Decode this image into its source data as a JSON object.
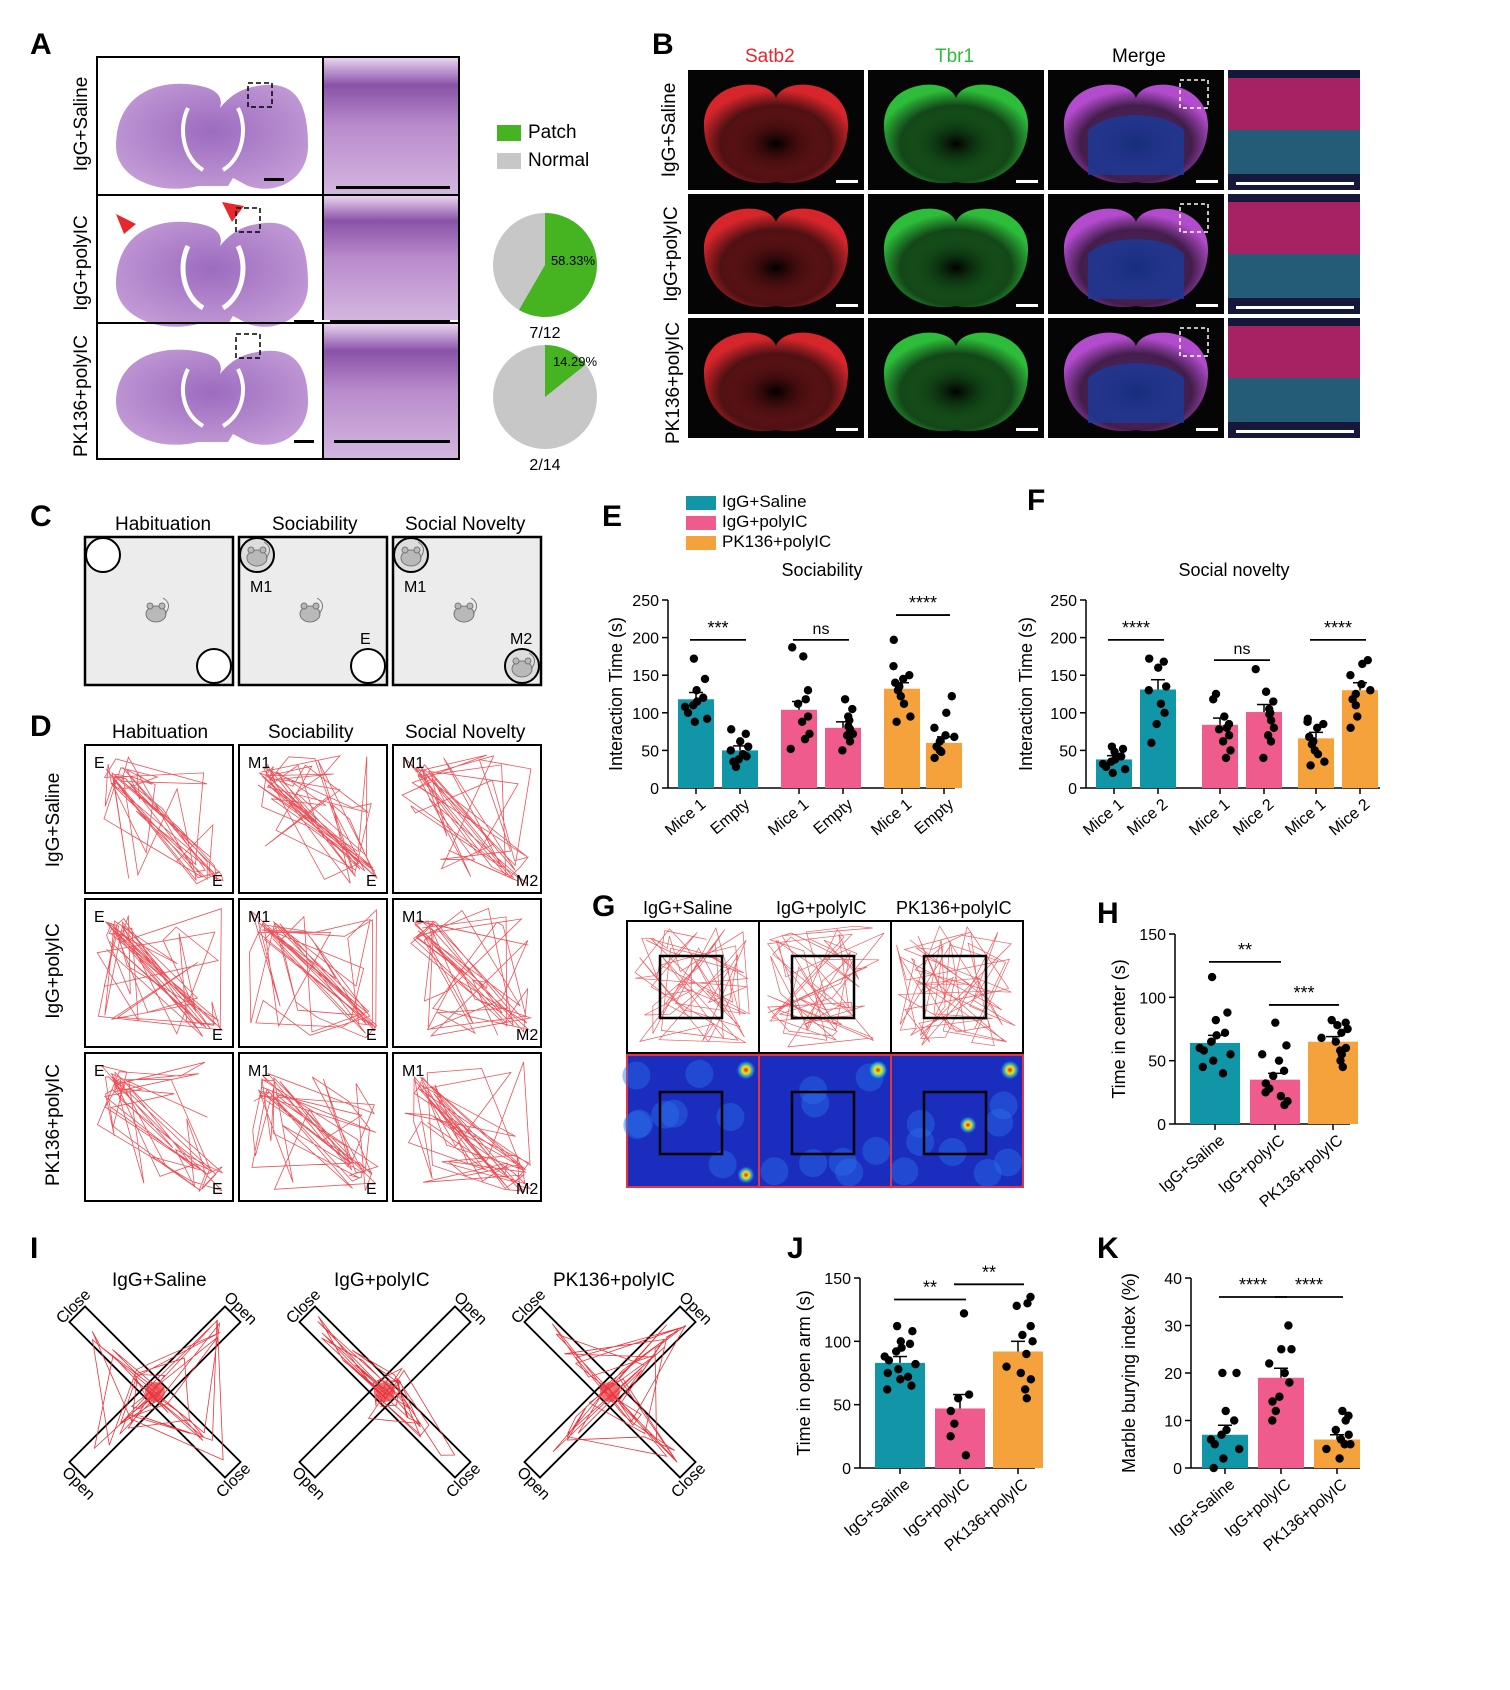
{
  "panels": {
    "A": "A",
    "B": "B",
    "C": "C",
    "D": "D",
    "E": "E",
    "F": "F",
    "G": "G",
    "H": "H",
    "I": "I",
    "J": "J",
    "K": "K"
  },
  "groups": [
    "IgG+Saline",
    "IgG+polyIC",
    "PK136+polyIC"
  ],
  "colors": {
    "saline": "#1196a8",
    "polyic": "#ee5b8c",
    "pk136": "#f6a23c",
    "patch": "#46b321",
    "normal": "#c7c7c7",
    "track": "#e8333b"
  },
  "panelA": {
    "legend": [
      "Patch",
      "Normal"
    ],
    "pies": [
      {
        "group": "IgG+polyIC",
        "patch_fraction": 0.5833,
        "pct_label": "58.33%",
        "ratio": "7/12"
      },
      {
        "group": "PK136+polyIC",
        "patch_fraction": 0.1429,
        "pct_label": "14.29%",
        "ratio": "2/14"
      }
    ]
  },
  "panelB": {
    "columns": [
      "Satb2",
      "Tbr1",
      "Merge"
    ]
  },
  "panelC": {
    "columns": [
      "Habituation",
      "Sociability",
      "Social Novelty"
    ],
    "labels": {
      "m1": "M1",
      "m2": "M2",
      "e": "E"
    }
  },
  "panelD": {
    "columns": [
      "Habituation",
      "Sociability",
      "Social Novelty"
    ]
  },
  "panelG": {
    "columns": [
      "IgG+Saline",
      "IgG+polyIC",
      "PK136+polyIC"
    ]
  },
  "panelI": {
    "arm_open": "Open",
    "arm_close": "Close"
  },
  "chart_data": [
    {
      "panel": "E",
      "type": "bar",
      "title": "Sociability",
      "ylabel": "Interaction Time (s)",
      "ylim": [
        0,
        250
      ],
      "yticks": [
        0,
        50,
        100,
        150,
        200,
        250
      ],
      "categories": [
        "Mice 1",
        "Empty",
        "Mice 1",
        "Empty",
        "Mice 1",
        "Empty"
      ],
      "values": [
        118,
        50,
        104,
        80,
        132,
        60
      ],
      "errors": [
        9,
        6,
        11,
        8,
        8,
        8
      ],
      "group_of": [
        0,
        0,
        1,
        1,
        2,
        2
      ],
      "significance": [
        "***",
        "ns",
        "****"
      ],
      "points": [
        [
          172,
          145,
          130,
          120,
          115,
          110,
          108,
          100,
          92,
          88
        ],
        [
          78,
          72,
          62,
          55,
          50,
          45,
          42,
          38,
          35,
          28
        ],
        [
          187,
          175,
          130,
          118,
          112,
          95,
          88,
          72,
          65,
          52
        ],
        [
          118,
          105,
          95,
          90,
          82,
          78,
          72,
          70,
          62,
          50
        ],
        [
          197,
          162,
          150,
          145,
          140,
          135,
          130,
          122,
          112,
          95,
          88
        ],
        [
          122,
          100,
          80,
          70,
          68,
          62,
          55,
          50,
          48,
          40
        ]
      ]
    },
    {
      "panel": "F",
      "type": "bar",
      "title": "Social novelty",
      "ylabel": "Interaction Time (s)",
      "ylim": [
        0,
        250
      ],
      "yticks": [
        0,
        50,
        100,
        150,
        200,
        250
      ],
      "categories": [
        "Mice 1",
        "Mice 2",
        "Mice 1",
        "Mice 2",
        "Mice 1",
        "Mice 2"
      ],
      "values": [
        38,
        131,
        84,
        101,
        66,
        130
      ],
      "errors": [
        5,
        13,
        9,
        10,
        8,
        10
      ],
      "group_of": [
        0,
        0,
        1,
        1,
        2,
        2
      ],
      "significance": [
        "****",
        "ns",
        "****"
      ],
      "points": [
        [
          55,
          52,
          48,
          42,
          38,
          35,
          32,
          28,
          25,
          20
        ],
        [
          172,
          168,
          160,
          135,
          130,
          112,
          100,
          85,
          60
        ],
        [
          125,
          118,
          95,
          85,
          80,
          78,
          70,
          62,
          50,
          40
        ],
        [
          158,
          128,
          115,
          105,
          100,
          98,
          90,
          80,
          70,
          62,
          40
        ],
        [
          92,
          88,
          85,
          80,
          68,
          62,
          58,
          50,
          45,
          35,
          30
        ],
        [
          170,
          165,
          150,
          138,
          130,
          125,
          118,
          110,
          95,
          80
        ]
      ]
    },
    {
      "panel": "H",
      "type": "bar",
      "ylabel": "Time in center (s)",
      "ylim": [
        0,
        150
      ],
      "yticks": [
        0,
        50,
        100,
        150
      ],
      "categories": [
        "IgG+Saline",
        "IgG+polyIC",
        "PK136+polyIC"
      ],
      "values": [
        64,
        35,
        65
      ],
      "errors": [
        6,
        5,
        4
      ],
      "significance": [
        "**",
        "***"
      ],
      "points": [
        [
          116,
          88,
          82,
          72,
          70,
          65,
          60,
          58,
          55,
          50,
          45,
          40
        ],
        [
          80,
          62,
          55,
          50,
          42,
          38,
          32,
          28,
          25,
          22,
          18,
          15
        ],
        [
          82,
          80,
          78,
          75,
          72,
          68,
          65,
          60,
          58,
          55,
          50,
          45
        ]
      ]
    },
    {
      "panel": "J",
      "type": "bar",
      "ylabel": "Time in open arm (s)",
      "ylim": [
        0,
        150
      ],
      "yticks": [
        0,
        50,
        100,
        150
      ],
      "categories": [
        "IgG+Saline",
        "IgG+polyIC",
        "PK136+polyIC"
      ],
      "values": [
        83,
        47,
        92
      ],
      "errors": [
        5,
        11,
        8
      ],
      "significance": [
        "**",
        "**"
      ],
      "points": [
        [
          112,
          108,
          100,
          98,
          95,
          92,
          88,
          85,
          82,
          78,
          75,
          72,
          70,
          65,
          62
        ],
        [
          122,
          58,
          55,
          45,
          35,
          25,
          10
        ],
        [
          135,
          130,
          128,
          112,
          105,
          100,
          90,
          80,
          75,
          70,
          62,
          55
        ]
      ]
    },
    {
      "panel": "K",
      "type": "bar",
      "ylabel": "Marble burying index (%)",
      "ylim": [
        0,
        40
      ],
      "yticks": [
        0,
        10,
        20,
        30,
        40
      ],
      "categories": [
        "IgG+Saline",
        "IgG+polyIC",
        "PK136+polyIC"
      ],
      "values": [
        7,
        19,
        6
      ],
      "errors": [
        2,
        2,
        1
      ],
      "significance": [
        "****",
        "****"
      ],
      "points": [
        [
          20,
          20,
          12,
          10,
          8,
          7,
          6,
          5,
          4,
          2,
          0
        ],
        [
          30,
          25,
          25,
          22,
          20,
          18,
          15,
          14,
          12,
          10
        ],
        [
          12,
          11,
          10,
          8,
          7,
          6,
          5,
          5,
          4,
          2
        ]
      ]
    }
  ]
}
